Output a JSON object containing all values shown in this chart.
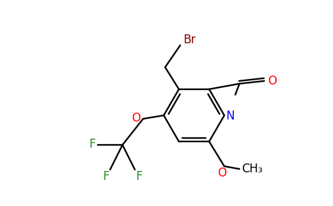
{
  "bg_color": "#ffffff",
  "bond_color": "#000000",
  "colors": {
    "Br": "#8b0000",
    "O": "#ff0000",
    "N": "#0000ff",
    "F": "#228b22",
    "C": "#000000"
  },
  "figsize": [
    4.84,
    3.0
  ],
  "dpi": 100
}
